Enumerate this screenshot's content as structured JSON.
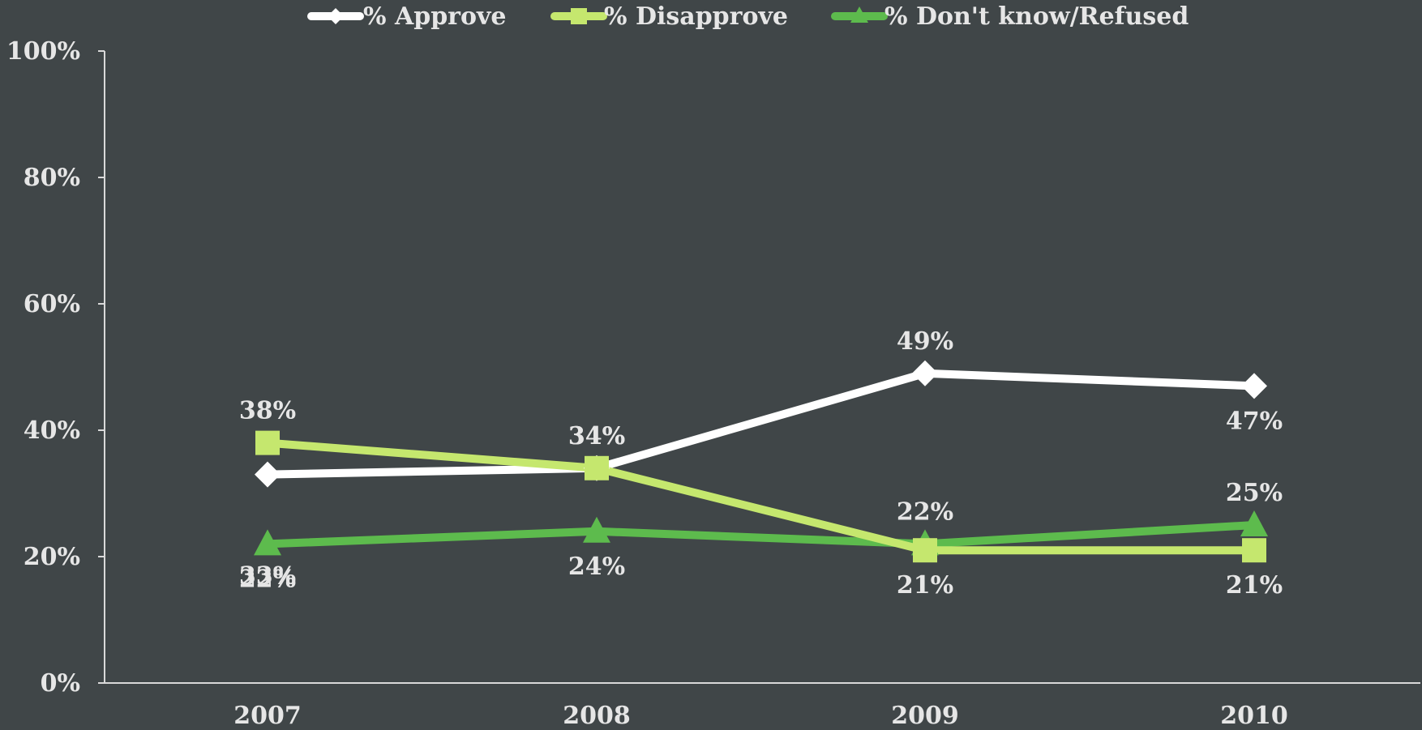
{
  "chart_data": {
    "type": "line",
    "categories": [
      "2007",
      "2008",
      "2009",
      "2010"
    ],
    "ylim": [
      0,
      100
    ],
    "yticks": [
      0,
      20,
      40,
      60,
      80,
      100
    ],
    "ytick_labels": [
      "0%",
      "20%",
      "40%",
      "60%",
      "80%",
      "100%"
    ],
    "grid": false,
    "legend_position": "top",
    "series": [
      {
        "name": "% Approve",
        "values": [
          33,
          34,
          49,
          47
        ],
        "labels": [
          "33%",
          "34%",
          "49%",
          "47%"
        ],
        "color": "#FFFFFF",
        "marker": "diamond"
      },
      {
        "name": "% Disapprove",
        "values": [
          38,
          34,
          21,
          21
        ],
        "labels": [
          "38%",
          "34%",
          "21%",
          "21%"
        ],
        "color": "#C5E76E",
        "marker": "square"
      },
      {
        "name": "% Don't know/Refused",
        "values": [
          22,
          24,
          22,
          25
        ],
        "labels": [
          "22%",
          "24%",
          "22%",
          "25%"
        ],
        "color": "#5DBB4D",
        "marker": "triangle"
      }
    ]
  }
}
